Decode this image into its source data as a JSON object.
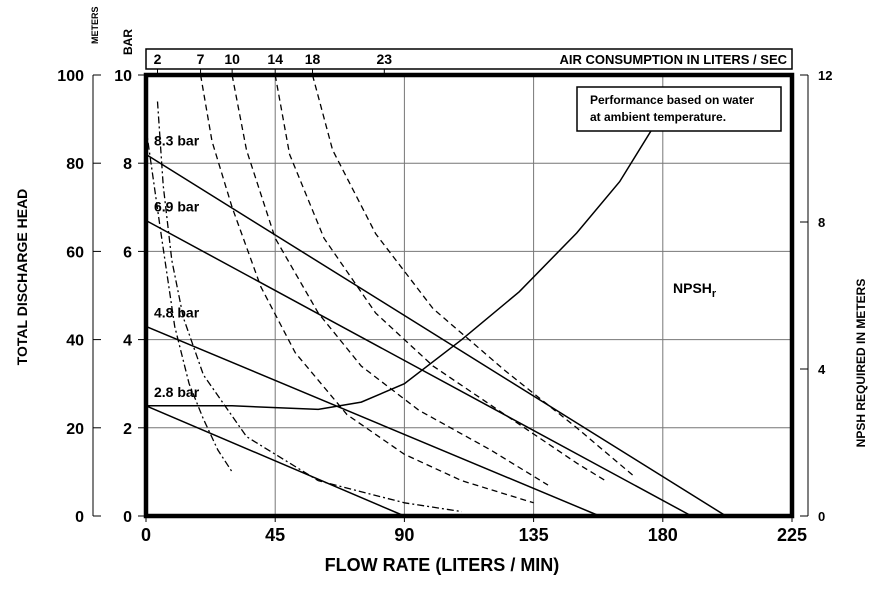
{
  "chart_data": {
    "type": "line",
    "xlabel": "FLOW RATE (LITERS / MIN)",
    "ylabel_left": "TOTAL DISCHARGE HEAD",
    "ylabel_right": "NPSH REQUIRED IN METERS",
    "meters_unit": "METERS",
    "bar_unit": "BAR",
    "top_axis_label": "AIR CONSUMPTION IN LITERS / SEC",
    "note_lines": [
      "Performance based on water",
      "at ambient temperature."
    ],
    "xlim": [
      0,
      225
    ],
    "ylim_meters": [
      0,
      100
    ],
    "ylim_bar": [
      0,
      10
    ],
    "ylim_npsh": [
      0,
      12
    ],
    "x_ticks": [
      "0",
      "45",
      "90",
      "135",
      "180",
      "225"
    ],
    "x_tick_values": [
      0,
      45,
      90,
      135,
      180,
      225
    ],
    "y_ticks_meters": [
      "0",
      "20",
      "40",
      "60",
      "80",
      "100"
    ],
    "y_tick_values_meters": [
      0,
      20,
      40,
      60,
      80,
      100
    ],
    "y_ticks_bar": [
      "0",
      "2",
      "4",
      "6",
      "8",
      "10"
    ],
    "y_tick_values_bar": [
      0,
      2,
      4,
      6,
      8,
      10
    ],
    "npsh_ticks": [
      "0",
      "4",
      "8",
      "12"
    ],
    "npsh_tick_values": [
      0,
      4,
      8,
      12
    ],
    "top_ticks": [
      {
        "label": "2",
        "x": 4
      },
      {
        "label": "7",
        "x": 19
      },
      {
        "label": "10",
        "x": 30
      },
      {
        "label": "14",
        "x": 45
      },
      {
        "label": "18",
        "x": 58
      },
      {
        "label": "23",
        "x": 83
      }
    ],
    "pressure_curves": [
      {
        "name": "8.3 bar",
        "points": [
          [
            0,
            82
          ],
          [
            202,
            0
          ]
        ]
      },
      {
        "name": "6.9 bar",
        "points": [
          [
            0,
            67
          ],
          [
            190,
            0
          ]
        ]
      },
      {
        "name": "4.8 bar",
        "points": [
          [
            0,
            43
          ],
          [
            158,
            0
          ]
        ]
      },
      {
        "name": "2.8 bar",
        "points": [
          [
            0,
            25
          ],
          [
            90,
            0
          ]
        ]
      }
    ],
    "npsh_curve": {
      "name": "NPSH",
      "subscript": "r",
      "points": [
        [
          0,
          3.0
        ],
        [
          30,
          3.0
        ],
        [
          60,
          2.9
        ],
        [
          75,
          3.1
        ],
        [
          90,
          3.6
        ],
        [
          110,
          4.8
        ],
        [
          130,
          6.1
        ],
        [
          150,
          7.7
        ],
        [
          165,
          9.1
        ],
        [
          180,
          11.0
        ]
      ]
    },
    "air_curves": [
      {
        "name": "2",
        "style": "dashdot",
        "points": [
          [
            0,
            88
          ],
          [
            5,
            65
          ],
          [
            10,
            43
          ],
          [
            15,
            30
          ],
          [
            20,
            22
          ],
          [
            25,
            15
          ],
          [
            30,
            10
          ]
        ]
      },
      {
        "name": "7",
        "style": "dashdot",
        "points": [
          [
            4,
            94
          ],
          [
            6,
            75
          ],
          [
            9,
            58
          ],
          [
            13,
            45
          ],
          [
            20,
            32
          ],
          [
            35,
            18
          ],
          [
            60,
            8
          ],
          [
            90,
            3
          ],
          [
            110,
            1
          ]
        ]
      },
      {
        "name": "10",
        "style": "dash",
        "points": [
          [
            19,
            100
          ],
          [
            23,
            85
          ],
          [
            30,
            70
          ],
          [
            40,
            52
          ],
          [
            52,
            37
          ],
          [
            70,
            23
          ],
          [
            90,
            14
          ],
          [
            110,
            8
          ],
          [
            135,
            3
          ]
        ]
      },
      {
        "name": "14",
        "style": "dash",
        "points": [
          [
            30,
            100
          ],
          [
            35,
            83
          ],
          [
            45,
            63
          ],
          [
            60,
            46
          ],
          [
            75,
            34
          ],
          [
            95,
            24
          ],
          [
            120,
            15
          ],
          [
            140,
            7
          ]
        ]
      },
      {
        "name": "18",
        "style": "dash",
        "points": [
          [
            45,
            100
          ],
          [
            50,
            82
          ],
          [
            62,
            63
          ],
          [
            80,
            46
          ],
          [
            100,
            34
          ],
          [
            125,
            23
          ],
          [
            150,
            12
          ],
          [
            160,
            8
          ]
        ]
      },
      {
        "name": "23",
        "style": "dash",
        "points": [
          [
            58,
            100
          ],
          [
            65,
            83
          ],
          [
            80,
            64
          ],
          [
            100,
            47
          ],
          [
            125,
            33
          ],
          [
            150,
            20
          ],
          [
            170,
            9
          ]
        ]
      }
    ]
  }
}
